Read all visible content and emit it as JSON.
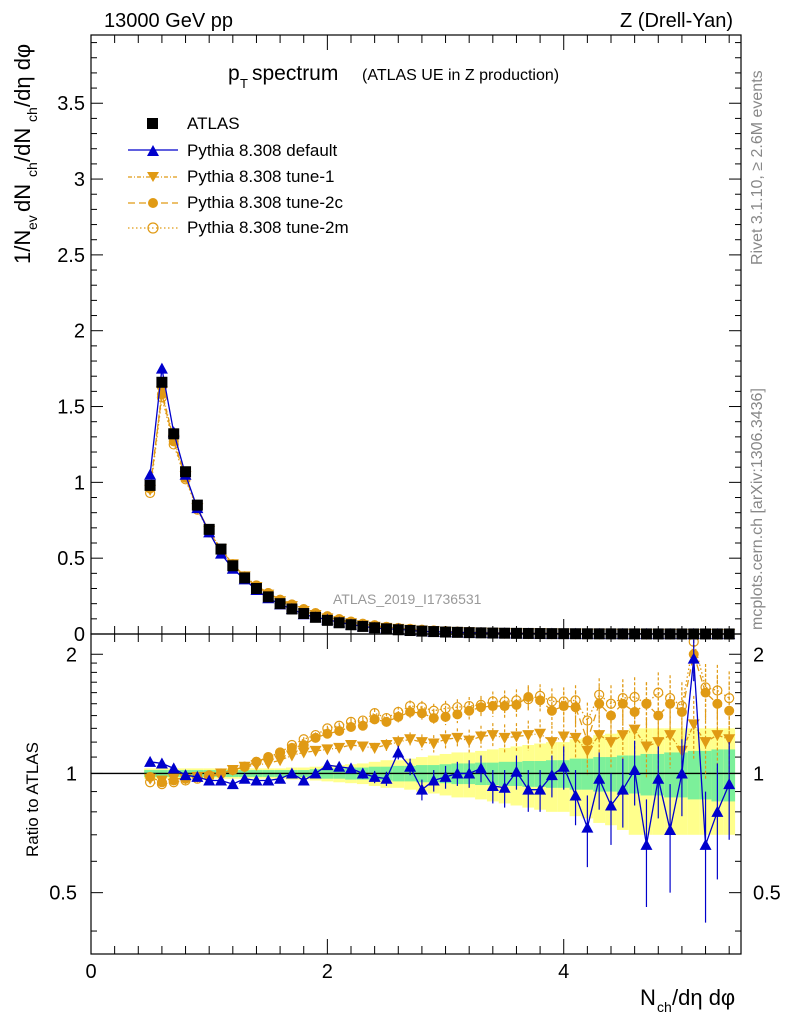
{
  "header": {
    "energy_label": "13000 GeV pp",
    "process_label": "Z (Drell-Yan)"
  },
  "side_labels": {
    "rivet": "Rivet 3.1.10, ≥ 2.6M events",
    "mcplots": "mcplots.cern.ch [arXiv:1306.3436]"
  },
  "colors": {
    "data": "#000000",
    "default": "#0000cc",
    "tunes": "#e09a14",
    "band_green": "#7cf09a",
    "band_yellow": "#ffff8c"
  },
  "chart_data": [
    {
      "type": "line",
      "title_main": "p",
      "title_sub": "T",
      "title_rest": " spectrum",
      "title_paren": "(ATLAS UE in Z production)",
      "watermark": "ATLAS_2019_I1736531",
      "xlabel": "N_ch/dη dφ",
      "xlabel_parts": [
        "N",
        "ch",
        "/dη dφ"
      ],
      "ylabel": "1/N_ev dN_ch/dN_ch/dη dφ",
      "ylabel_parts": [
        "1/N",
        "ev",
        " dN",
        "ch",
        "/dN",
        "ch",
        "/dη dφ"
      ],
      "xlim": [
        0,
        5.5
      ],
      "ylim": [
        0,
        3.95
      ],
      "x_ticks": [
        0,
        2,
        4
      ],
      "y_ticks": [
        0,
        0.5,
        1,
        1.5,
        2,
        2.5,
        3,
        3.5
      ],
      "y_tick_labels": [
        "0",
        "0.5",
        "1",
        "1.5",
        "2",
        "2.5",
        "3",
        "3.5"
      ],
      "legend": [
        "ATLAS",
        "Pythia 8.308 default",
        "Pythia 8.308 tune-1",
        "Pythia 8.308 tune-2c",
        "Pythia 8.308 tune-2m"
      ],
      "x": [
        0.5,
        0.6,
        0.7,
        0.8,
        0.9,
        1.0,
        1.1,
        1.2,
        1.3,
        1.4,
        1.5,
        1.6,
        1.7,
        1.8,
        1.9,
        2.0,
        2.1,
        2.2,
        2.3,
        2.4,
        2.5,
        2.6,
        2.7,
        2.8,
        2.9,
        3.0,
        3.1,
        3.2,
        3.3,
        3.4,
        3.5,
        3.6,
        3.7,
        3.8,
        3.9,
        4.0,
        4.1,
        4.2,
        4.3,
        4.4,
        4.5,
        4.6,
        4.7,
        4.8,
        4.9,
        5.0,
        5.1,
        5.2,
        5.3,
        5.4
      ],
      "series": [
        {
          "name": "ATLAS",
          "values": [
            0.98,
            1.66,
            1.32,
            1.07,
            0.85,
            0.69,
            0.56,
            0.45,
            0.37,
            0.3,
            0.245,
            0.2,
            0.165,
            0.135,
            0.11,
            0.09,
            0.074,
            0.061,
            0.05,
            0.041,
            0.034,
            0.028,
            0.023,
            0.019,
            0.016,
            0.013,
            0.011,
            0.009,
            0.0075,
            0.0062,
            0.0052,
            0.0043,
            0.0036,
            0.003,
            0.0025,
            0.0021,
            0.0017,
            0.0014,
            0.0012,
            0.001,
            0.0008,
            0.0007,
            0.0006,
            0.0005,
            0.0004,
            0.00035,
            0.0003,
            0.00025,
            0.0002,
            0.00018
          ]
        },
        {
          "name": "Pythia 8.308 default",
          "values": [
            1.05,
            1.75,
            1.33,
            1.05,
            0.83,
            0.67,
            0.53,
            0.43,
            0.36,
            0.29,
            0.236,
            0.195,
            0.165,
            0.13,
            0.11,
            0.095,
            0.077,
            0.063,
            0.05,
            0.04,
            0.033,
            0.032,
            0.024,
            0.017,
            0.015,
            0.013,
            0.011,
            0.009,
            0.0077,
            0.0058,
            0.0048,
            0.0044,
            0.0033,
            0.0028,
            0.0025,
            0.0022,
            0.0015,
            0.0013,
            0.0012,
            0.0008,
            0.0007,
            0.0006,
            0.0005,
            0.0005,
            0.0003,
            0.0003,
            0.0006,
            0.0002,
            0.0002,
            0.00017
          ]
        },
        {
          "name": "Pythia 8.308 tune-1",
          "values": [
            0.95,
            1.6,
            1.28,
            1.04,
            0.83,
            0.68,
            0.56,
            0.46,
            0.38,
            0.31,
            0.26,
            0.216,
            0.184,
            0.152,
            0.125,
            0.103,
            0.086,
            0.072,
            0.058,
            0.048,
            0.04,
            0.034,
            0.028,
            0.023,
            0.019,
            0.016,
            0.0135,
            0.011,
            0.0093,
            0.0078,
            0.0064,
            0.0053,
            0.0045,
            0.0038,
            0.003,
            0.0026,
            0.0021,
            0.0016,
            0.0015,
            0.0012,
            0.001,
            0.0009,
            0.0007,
            0.0006,
            0.0005,
            0.0004,
            0.0004,
            0.0003,
            0.00025,
            0.00022
          ]
        },
        {
          "name": "Pythia 8.308 tune-2c",
          "values": [
            0.96,
            1.58,
            1.27,
            1.03,
            0.83,
            0.68,
            0.56,
            0.46,
            0.38,
            0.32,
            0.27,
            0.225,
            0.192,
            0.16,
            0.135,
            0.113,
            0.095,
            0.08,
            0.066,
            0.056,
            0.046,
            0.039,
            0.033,
            0.027,
            0.022,
            0.018,
            0.0155,
            0.013,
            0.011,
            0.0092,
            0.0077,
            0.0064,
            0.0056,
            0.0046,
            0.0036,
            0.0031,
            0.0025,
            0.0017,
            0.0018,
            0.0014,
            0.0012,
            0.001,
            0.0009,
            0.0007,
            0.0006,
            0.0005,
            0.0006,
            0.0004,
            0.0003,
            0.00026
          ]
        },
        {
          "name": "Pythia 8.308 tune-2m",
          "values": [
            0.93,
            1.56,
            1.25,
            1.02,
            0.82,
            0.67,
            0.56,
            0.46,
            0.38,
            0.32,
            0.27,
            0.226,
            0.195,
            0.164,
            0.138,
            0.117,
            0.098,
            0.082,
            0.068,
            0.058,
            0.047,
            0.04,
            0.034,
            0.028,
            0.023,
            0.019,
            0.016,
            0.0133,
            0.0112,
            0.0094,
            0.0079,
            0.0066,
            0.0057,
            0.0047,
            0.0038,
            0.0032,
            0.0026,
            0.0019,
            0.0019,
            0.0015,
            0.0013,
            0.0011,
            0.001,
            0.0008,
            0.0006,
            0.0005,
            0.0007,
            0.0004,
            0.0003,
            0.00027
          ]
        }
      ]
    },
    {
      "type": "line",
      "ylabel": "Ratio to ATLAS",
      "xlim": [
        0,
        5.5
      ],
      "ylim": [
        0.35,
        2.25
      ],
      "y_ticks": [
        0.5,
        1,
        2
      ],
      "y_tick_labels": [
        "0.5",
        "1",
        "2"
      ],
      "reference_line": 1,
      "x": [
        0.5,
        0.6,
        0.7,
        0.8,
        0.9,
        1.0,
        1.1,
        1.2,
        1.3,
        1.4,
        1.5,
        1.6,
        1.7,
        1.8,
        1.9,
        2.0,
        2.1,
        2.2,
        2.3,
        2.4,
        2.5,
        2.6,
        2.7,
        2.8,
        2.9,
        3.0,
        3.1,
        3.2,
        3.3,
        3.4,
        3.5,
        3.6,
        3.7,
        3.8,
        3.9,
        4.0,
        4.1,
        4.2,
        4.3,
        4.4,
        4.5,
        4.6,
        4.7,
        4.8,
        4.9,
        5.0,
        5.1,
        5.2,
        5.3,
        5.4
      ],
      "band_green_halfwidth": [
        0.02,
        0.02,
        0.02,
        0.02,
        0.02,
        0.02,
        0.02,
        0.02,
        0.02,
        0.02,
        0.02,
        0.02,
        0.02,
        0.02,
        0.025,
        0.03,
        0.03,
        0.035,
        0.035,
        0.04,
        0.04,
        0.045,
        0.045,
        0.05,
        0.05,
        0.055,
        0.06,
        0.06,
        0.065,
        0.065,
        0.07,
        0.07,
        0.075,
        0.075,
        0.08,
        0.08,
        0.09,
        0.09,
        0.1,
        0.1,
        0.11,
        0.11,
        0.12,
        0.12,
        0.13,
        0.13,
        0.14,
        0.14,
        0.15,
        0.15
      ],
      "band_yellow_halfwidth": [
        0.03,
        0.03,
        0.03,
        0.03,
        0.03,
        0.03,
        0.03,
        0.03,
        0.03,
        0.03,
        0.03,
        0.03,
        0.035,
        0.035,
        0.04,
        0.045,
        0.05,
        0.055,
        0.06,
        0.07,
        0.08,
        0.08,
        0.09,
        0.1,
        0.11,
        0.12,
        0.13,
        0.13,
        0.14,
        0.15,
        0.16,
        0.17,
        0.18,
        0.19,
        0.2,
        0.2,
        0.22,
        0.23,
        0.25,
        0.26,
        0.28,
        0.3,
        0.3,
        0.3,
        0.3,
        0.3,
        0.3,
        0.3,
        0.3,
        0.3
      ],
      "series": [
        {
          "name": "Pythia 8.308 default",
          "values": [
            1.07,
            1.06,
            1.03,
            0.99,
            0.98,
            0.96,
            0.96,
            0.94,
            0.97,
            0.96,
            0.96,
            0.97,
            1.0,
            0.96,
            1.0,
            1.05,
            1.04,
            1.03,
            1.0,
            0.98,
            0.97,
            1.13,
            1.04,
            0.91,
            0.96,
            0.98,
            1.0,
            1.0,
            1.03,
            0.93,
            0.92,
            1.01,
            0.91,
            0.91,
            0.99,
            1.04,
            0.88,
            0.73,
            0.97,
            0.83,
            0.91,
            1.02,
            0.66,
            0.97,
            0.72,
            1.0,
            1.95,
            0.66,
            0.8,
            0.94
          ],
          "errors": [
            0.01,
            0.01,
            0.01,
            0.01,
            0.01,
            0.01,
            0.01,
            0.01,
            0.01,
            0.01,
            0.01,
            0.01,
            0.015,
            0.015,
            0.02,
            0.02,
            0.025,
            0.03,
            0.03,
            0.035,
            0.04,
            0.045,
            0.05,
            0.055,
            0.06,
            0.065,
            0.07,
            0.08,
            0.08,
            0.09,
            0.1,
            0.1,
            0.11,
            0.11,
            0.12,
            0.13,
            0.14,
            0.15,
            0.16,
            0.17,
            0.18,
            0.19,
            0.2,
            0.2,
            0.22,
            0.22,
            0.24,
            0.24,
            0.26,
            0.26
          ]
        },
        {
          "name": "Pythia 8.308 tune-1",
          "values": [
            0.97,
            0.96,
            0.97,
            0.97,
            0.98,
            0.98,
            1.0,
            1.02,
            1.04,
            1.05,
            1.06,
            1.08,
            1.11,
            1.13,
            1.14,
            1.15,
            1.16,
            1.18,
            1.17,
            1.16,
            1.18,
            1.2,
            1.22,
            1.2,
            1.19,
            1.22,
            1.23,
            1.21,
            1.24,
            1.25,
            1.23,
            1.24,
            1.25,
            1.26,
            1.2,
            1.24,
            1.23,
            1.14,
            1.25,
            1.2,
            1.25,
            1.29,
            1.17,
            1.2,
            1.25,
            1.14,
            1.33,
            1.2,
            1.25,
            1.22
          ],
          "errors": [
            0.01,
            0.01,
            0.01,
            0.01,
            0.01,
            0.01,
            0.01,
            0.01,
            0.01,
            0.01,
            0.01,
            0.01,
            0.015,
            0.015,
            0.02,
            0.02,
            0.025,
            0.03,
            0.03,
            0.035,
            0.04,
            0.045,
            0.05,
            0.055,
            0.06,
            0.065,
            0.07,
            0.08,
            0.08,
            0.09,
            0.1,
            0.1,
            0.11,
            0.11,
            0.12,
            0.13,
            0.14,
            0.15,
            0.16,
            0.17,
            0.18,
            0.19,
            0.2,
            0.2,
            0.22,
            0.22,
            0.24,
            0.24,
            0.26,
            0.26
          ]
        },
        {
          "name": "Pythia 8.308 tune-2c",
          "values": [
            0.98,
            0.95,
            0.96,
            0.97,
            0.98,
            0.99,
            1.0,
            1.02,
            1.04,
            1.07,
            1.1,
            1.13,
            1.16,
            1.18,
            1.23,
            1.26,
            1.28,
            1.31,
            1.32,
            1.37,
            1.35,
            1.39,
            1.43,
            1.42,
            1.38,
            1.39,
            1.41,
            1.44,
            1.47,
            1.48,
            1.48,
            1.49,
            1.56,
            1.53,
            1.44,
            1.48,
            1.47,
            1.21,
            1.5,
            1.4,
            1.5,
            1.43,
            1.5,
            1.4,
            1.5,
            1.43,
            2.0,
            1.6,
            1.5,
            1.44
          ],
          "errors": [
            0.01,
            0.01,
            0.01,
            0.01,
            0.01,
            0.01,
            0.01,
            0.01,
            0.01,
            0.01,
            0.01,
            0.01,
            0.015,
            0.015,
            0.02,
            0.02,
            0.025,
            0.03,
            0.03,
            0.035,
            0.04,
            0.045,
            0.05,
            0.055,
            0.06,
            0.065,
            0.07,
            0.08,
            0.08,
            0.09,
            0.1,
            0.1,
            0.11,
            0.11,
            0.12,
            0.13,
            0.14,
            0.15,
            0.16,
            0.17,
            0.18,
            0.19,
            0.2,
            0.2,
            0.22,
            0.22,
            0.24,
            0.24,
            0.26,
            0.26
          ]
        },
        {
          "name": "Pythia 8.308 tune-2m",
          "values": [
            0.95,
            0.94,
            0.95,
            0.96,
            0.97,
            0.98,
            1.0,
            1.02,
            1.04,
            1.07,
            1.1,
            1.13,
            1.18,
            1.22,
            1.25,
            1.3,
            1.32,
            1.35,
            1.36,
            1.42,
            1.38,
            1.43,
            1.48,
            1.47,
            1.44,
            1.46,
            1.47,
            1.48,
            1.49,
            1.52,
            1.52,
            1.53,
            1.54,
            1.57,
            1.52,
            1.52,
            1.53,
            1.36,
            1.58,
            1.5,
            1.55,
            1.56,
            1.5,
            1.6,
            1.55,
            1.48,
            2.15,
            1.65,
            1.62,
            1.55
          ],
          "errors": [
            0.01,
            0.01,
            0.01,
            0.01,
            0.01,
            0.01,
            0.01,
            0.01,
            0.01,
            0.01,
            0.01,
            0.01,
            0.015,
            0.015,
            0.02,
            0.02,
            0.025,
            0.03,
            0.03,
            0.035,
            0.04,
            0.045,
            0.05,
            0.055,
            0.06,
            0.065,
            0.07,
            0.08,
            0.08,
            0.09,
            0.1,
            0.1,
            0.11,
            0.11,
            0.12,
            0.13,
            0.14,
            0.15,
            0.16,
            0.17,
            0.18,
            0.19,
            0.2,
            0.2,
            0.22,
            0.22,
            0.24,
            0.24,
            0.26,
            0.26
          ]
        }
      ]
    }
  ]
}
